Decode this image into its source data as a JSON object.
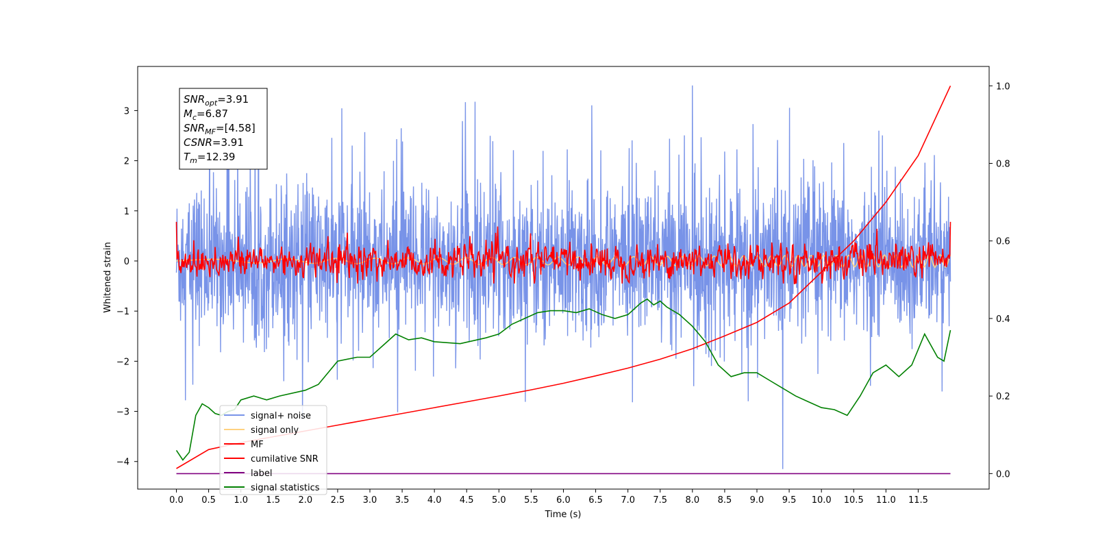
{
  "chart_data": {
    "type": "line",
    "xlabel": "Time (s)",
    "ylabel": "Whitened strain",
    "xlim": [
      -0.6,
      12.6
    ],
    "ylim": [
      -4.55,
      3.88
    ],
    "ylim_right": [
      -0.04,
      1.05
    ],
    "x_ticks": [
      "0.0",
      "0.5",
      "1.0",
      "1.5",
      "2.0",
      "2.5",
      "3.0",
      "3.5",
      "4.0",
      "4.5",
      "5.0",
      "5.5",
      "6.0",
      "6.5",
      "7.0",
      "7.5",
      "8.0",
      "8.5",
      "9.0",
      "9.5",
      "10.0",
      "10.5",
      "11.0",
      "11.5"
    ],
    "y_ticks": [
      "3",
      "2",
      "1",
      "0",
      "−1",
      "−2",
      "−3",
      "−4"
    ],
    "y_ticks_right": [
      "1.0",
      "0.8",
      "0.6",
      "0.4",
      "0.2",
      "0.0"
    ],
    "stats_box": [
      {
        "base": "SNR",
        "sub": "opt",
        "value": "=3.91"
      },
      {
        "base": "M",
        "sub": "c",
        "value": "=6.87"
      },
      {
        "base": "SNR",
        "sub": "MF",
        "value": "=[4.58]"
      },
      {
        "base": "CSNR",
        "sub": "",
        "value": "=3.91"
      },
      {
        "base": "T",
        "sub": "m",
        "value": "=12.39"
      }
    ],
    "legend": {
      "position": "lower-left",
      "entries": [
        {
          "label": "signal+ noise",
          "color": "#7893e8"
        },
        {
          "label": "signal only",
          "color": "#ffd27f"
        },
        {
          "label": "MF",
          "color": "#ff0000"
        },
        {
          "label": "cumilative SNR",
          "color": "#ff0000"
        },
        {
          "label": "label",
          "color": "#800080"
        },
        {
          "label": "signal statistics",
          "color": "#008000"
        }
      ]
    },
    "series": [
      {
        "name": "signal+ noise",
        "axis": "left",
        "color": "#7893e8",
        "x_range": [
          0.0,
          12.0
        ],
        "envelope_y": [
          -1.8,
          1.8
        ],
        "spike_max": 3.5,
        "spike_min": -4.15
      },
      {
        "name": "signal only",
        "axis": "left",
        "color": "#ffd27f",
        "x_range": [
          0.0,
          12.0
        ],
        "amplitude": 0.1
      },
      {
        "name": "MF",
        "axis": "left",
        "color": "#ff0000",
        "x_range": [
          0.0,
          12.0
        ],
        "amplitude": 0.3,
        "start_y": 0.95,
        "end_y": 1.0
      },
      {
        "name": "cumilative SNR",
        "axis": "right",
        "color": "#ff0000",
        "x": [
          0.0,
          0.5,
          1.0,
          1.5,
          2.0,
          2.5,
          3.0,
          3.5,
          4.0,
          4.5,
          5.0,
          5.5,
          6.0,
          6.5,
          7.0,
          7.5,
          8.0,
          8.5,
          9.0,
          9.5,
          10.0,
          10.5,
          11.0,
          11.5,
          12.0
        ],
        "y": [
          0.013,
          0.062,
          0.08,
          0.095,
          0.11,
          0.125,
          0.14,
          0.155,
          0.17,
          0.185,
          0.2,
          0.216,
          0.233,
          0.252,
          0.272,
          0.295,
          0.322,
          0.355,
          0.39,
          0.44,
          0.52,
          0.6,
          0.7,
          0.82,
          1.0
        ]
      },
      {
        "name": "label",
        "axis": "right",
        "color": "#800080",
        "x": [
          0.0,
          12.0
        ],
        "y": [
          0.0,
          0.0
        ]
      },
      {
        "name": "signal statistics",
        "axis": "right",
        "color": "#008000",
        "x": [
          0.0,
          0.1,
          0.2,
          0.3,
          0.4,
          0.5,
          0.6,
          0.7,
          0.8,
          0.9,
          1.0,
          1.2,
          1.4,
          1.6,
          2.0,
          2.2,
          2.5,
          2.8,
          3.0,
          3.2,
          3.4,
          3.6,
          3.8,
          4.0,
          4.4,
          4.8,
          5.0,
          5.2,
          5.4,
          5.6,
          5.8,
          6.0,
          6.2,
          6.4,
          6.6,
          6.8,
          7.0,
          7.2,
          7.3,
          7.4,
          7.5,
          7.6,
          7.8,
          8.0,
          8.2,
          8.4,
          8.6,
          8.8,
          9.0,
          9.2,
          9.4,
          9.6,
          9.8,
          10.0,
          10.2,
          10.4,
          10.6,
          10.8,
          11.0,
          11.2,
          11.4,
          11.6,
          11.8,
          11.9,
          12.0
        ],
        "y": [
          0.06,
          0.035,
          0.055,
          0.15,
          0.18,
          0.17,
          0.155,
          0.15,
          0.16,
          0.165,
          0.19,
          0.2,
          0.19,
          0.2,
          0.215,
          0.23,
          0.29,
          0.3,
          0.3,
          0.33,
          0.36,
          0.345,
          0.35,
          0.34,
          0.335,
          0.35,
          0.36,
          0.385,
          0.4,
          0.415,
          0.42,
          0.42,
          0.415,
          0.425,
          0.41,
          0.4,
          0.41,
          0.44,
          0.45,
          0.435,
          0.445,
          0.43,
          0.41,
          0.38,
          0.34,
          0.28,
          0.25,
          0.26,
          0.26,
          0.24,
          0.22,
          0.2,
          0.185,
          0.17,
          0.165,
          0.15,
          0.2,
          0.26,
          0.28,
          0.25,
          0.28,
          0.36,
          0.3,
          0.29,
          0.37
        ]
      }
    ]
  }
}
